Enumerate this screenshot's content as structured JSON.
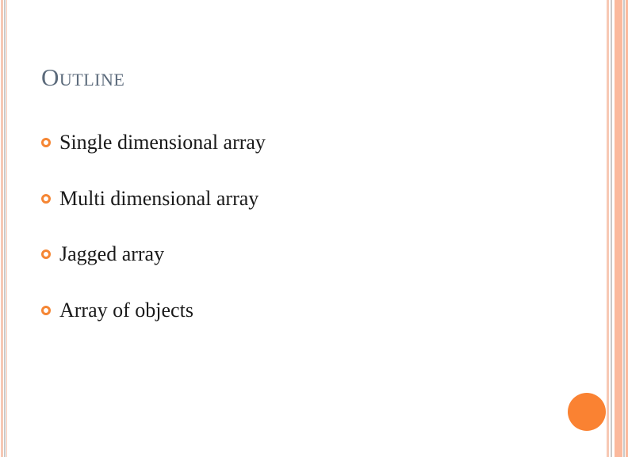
{
  "slide": {
    "title": "Outline",
    "bullets": [
      "Single dimensional array",
      "Multi dimensional array",
      "Jagged array",
      "Array of objects"
    ]
  },
  "colors": {
    "title": "#5b6a7b",
    "accent": "#f58634",
    "border_light": "#f7c8b4",
    "border_gray": "#c9c9c9"
  },
  "icons": {
    "bullet": "ring-bullet-icon",
    "corner": "orange-circle-decoration"
  }
}
